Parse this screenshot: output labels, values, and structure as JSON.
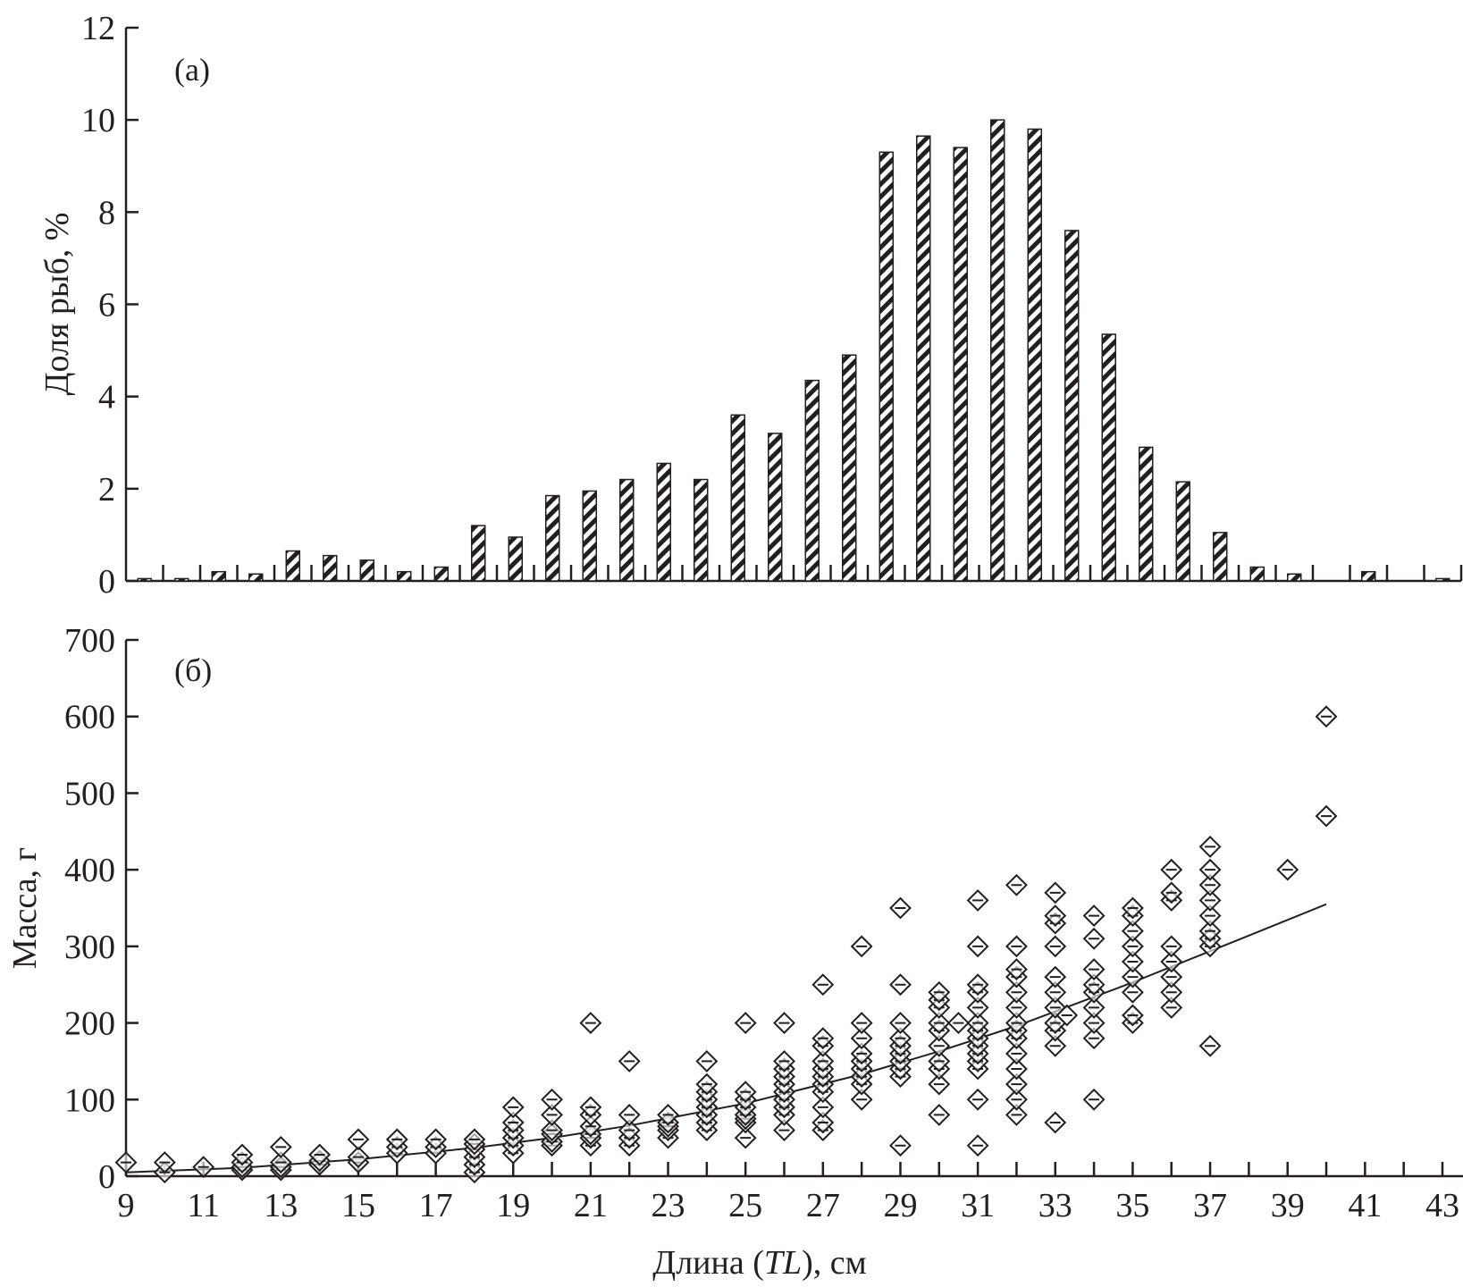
{
  "chart_data": [
    {
      "type": "bar",
      "panel_label": "(а)",
      "ylabel": "Доля рыб, %",
      "xlabel": "",
      "ylim": [
        0,
        12
      ],
      "yticks": [
        "0",
        "2",
        "4",
        "6",
        "8",
        "10",
        "12"
      ],
      "values": [
        0.05,
        0.05,
        0.2,
        0.15,
        0.65,
        0.55,
        0.45,
        0.2,
        0.3,
        1.2,
        0.95,
        1.85,
        1.95,
        2.2,
        2.55,
        2.2,
        3.6,
        3.2,
        4.35,
        4.9,
        9.3,
        9.65,
        9.4,
        10.0,
        9.8,
        7.6,
        5.35,
        2.9,
        2.15,
        1.05,
        0.3,
        0.15,
        0,
        0.2,
        0,
        0.05
      ],
      "bar_fill": "hatched",
      "grid": false
    },
    {
      "type": "scatter",
      "panel_label": "(б)",
      "ylabel": "Масса, г",
      "xlabel_parts": [
        "Длина (",
        "TL",
        "), см"
      ],
      "xlim": [
        9,
        44
      ],
      "ylim": [
        0,
        700
      ],
      "xticks": [
        "9",
        "11",
        "13",
        "15",
        "17",
        "19",
        "21",
        "23",
        "25",
        "27",
        "29",
        "31",
        "33",
        "35",
        "37",
        "39",
        "41",
        "43"
      ],
      "yticks": [
        "0",
        "100",
        "200",
        "300",
        "400",
        "500",
        "600",
        "700"
      ],
      "marker": "diamond",
      "grid": false,
      "points": [
        [
          9,
          [
            18
          ]
        ],
        [
          10,
          [
            5,
            18
          ]
        ],
        [
          11,
          [
            12
          ]
        ],
        [
          12,
          [
            8,
            12,
            18,
            28
          ]
        ],
        [
          13,
          [
            8,
            12,
            18,
            38
          ]
        ],
        [
          14,
          [
            15,
            20,
            28
          ]
        ],
        [
          15,
          [
            18,
            25,
            48
          ]
        ],
        [
          16,
          [
            30,
            38,
            48
          ]
        ],
        [
          17,
          [
            30,
            38,
            48
          ]
        ],
        [
          18,
          [
            5,
            15,
            25,
            35,
            42,
            48
          ]
        ],
        [
          19,
          [
            30,
            40,
            50,
            60,
            70,
            90
          ]
        ],
        [
          20,
          [
            40,
            45,
            55,
            60,
            80,
            100
          ]
        ],
        [
          21,
          [
            40,
            50,
            55,
            65,
            80,
            90,
            200
          ]
        ],
        [
          22,
          [
            40,
            50,
            60,
            80,
            150
          ]
        ],
        [
          23,
          [
            50,
            60,
            65,
            70,
            80
          ]
        ],
        [
          24,
          [
            60,
            70,
            80,
            90,
            100,
            110,
            120,
            150
          ]
        ],
        [
          25,
          [
            50,
            70,
            75,
            80,
            90,
            100,
            110,
            200
          ]
        ],
        [
          26,
          [
            60,
            80,
            90,
            100,
            110,
            120,
            130,
            140,
            150,
            200
          ]
        ],
        [
          27,
          [
            60,
            70,
            90,
            110,
            120,
            130,
            140,
            150,
            170,
            180,
            250
          ]
        ],
        [
          28,
          [
            100,
            120,
            130,
            140,
            150,
            160,
            180,
            200,
            300
          ]
        ],
        [
          29,
          [
            40,
            130,
            140,
            150,
            160,
            170,
            180,
            200,
            250,
            350
          ]
        ],
        [
          30,
          [
            80,
            120,
            140,
            150,
            170,
            190,
            200,
            220,
            230,
            240
          ]
        ],
        [
          30.5,
          [
            200
          ]
        ],
        [
          31,
          [
            40,
            100,
            140,
            150,
            160,
            170,
            180,
            190,
            200,
            220,
            240,
            250,
            300,
            360
          ]
        ],
        [
          32,
          [
            80,
            100,
            120,
            140,
            160,
            180,
            190,
            200,
            220,
            240,
            260,
            270,
            300,
            380
          ]
        ],
        [
          33,
          [
            70,
            170,
            190,
            200,
            220,
            240,
            260,
            300,
            330,
            340,
            370
          ]
        ],
        [
          33.3,
          [
            210
          ]
        ],
        [
          34,
          [
            100,
            180,
            200,
            220,
            240,
            250,
            270,
            310,
            340
          ]
        ],
        [
          35,
          [
            200,
            210,
            240,
            260,
            280,
            300,
            320,
            340,
            350
          ]
        ],
        [
          36,
          [
            220,
            240,
            260,
            280,
            300,
            360,
            370,
            400
          ]
        ],
        [
          37,
          [
            170,
            300,
            310,
            320,
            340,
            360,
            380,
            400,
            430
          ]
        ],
        [
          39,
          [
            400
          ]
        ],
        [
          40,
          [
            470,
            600
          ]
        ]
      ],
      "fit_line": [
        [
          9,
          5
        ],
        [
          12,
          11
        ],
        [
          15,
          22
        ],
        [
          18,
          37
        ],
        [
          20,
          50
        ],
        [
          22,
          66
        ],
        [
          25,
          95
        ],
        [
          28,
          133
        ],
        [
          30,
          163
        ],
        [
          32,
          196
        ],
        [
          35,
          253
        ],
        [
          38,
          314
        ],
        [
          40,
          355
        ]
      ]
    }
  ]
}
